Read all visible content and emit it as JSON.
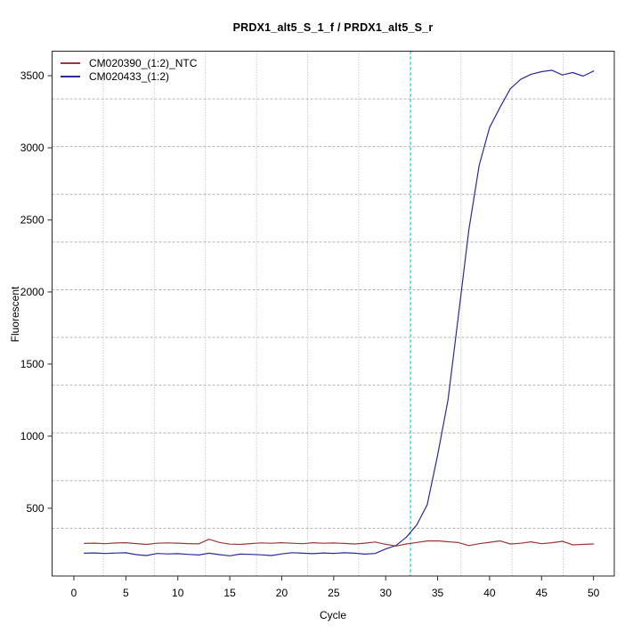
{
  "chart_data": {
    "type": "line",
    "title": "PRDX1_alt5_S_1_f / PRDX1_alt5_S_r",
    "xlabel": "Cycle",
    "ylabel": "Fluorescent",
    "xlim": [
      -2.1,
      52.0
    ],
    "ylim": [
      30,
      3670
    ],
    "x_ticks": [
      0,
      5,
      10,
      15,
      20,
      25,
      30,
      35,
      40,
      45,
      50
    ],
    "y_ticks": [
      500,
      1000,
      1500,
      2000,
      2500,
      3000,
      3500
    ],
    "grid": {
      "divisions_x": 11,
      "divisions_y": 11,
      "color": "#b3b3b3"
    },
    "axis_color": "#2a2a2a",
    "text_color": "#000000",
    "legend_position": "top-left",
    "threshold_line": {
      "x": 32.4,
      "color": "#00dfe8",
      "style": "dashed"
    },
    "x_start": 1,
    "series": [
      {
        "name": "CM020390_(1:2)_NTC",
        "color": "#9a3939",
        "values": [
          256,
          258,
          254,
          259,
          261,
          255,
          249,
          257,
          260,
          258,
          255,
          253,
          285,
          263,
          251,
          249,
          255,
          260,
          257,
          261,
          257,
          254,
          261,
          257,
          259,
          256,
          252,
          258,
          266,
          250,
          238,
          252,
          263,
          273,
          274,
          268,
          262,
          241,
          254,
          264,
          273,
          252,
          257,
          267,
          254,
          261,
          271,
          246,
          249,
          252
        ]
      },
      {
        "name": "CM020433_(1:2)",
        "color": "#2b2b9c",
        "values": [
          188,
          190,
          186,
          189,
          191,
          178,
          172,
          186,
          183,
          185,
          180,
          176,
          188,
          178,
          170,
          182,
          180,
          177,
          172,
          183,
          192,
          188,
          185,
          190,
          187,
          191,
          188,
          182,
          186,
          218,
          242,
          300,
          385,
          525,
          870,
          1250,
          1835,
          2430,
          2880,
          3140,
          3280,
          3410,
          3475,
          3510,
          3528,
          3538,
          3505,
          3522,
          3497,
          3532
        ]
      }
    ]
  }
}
